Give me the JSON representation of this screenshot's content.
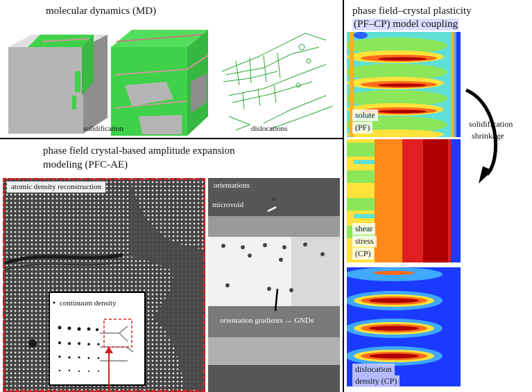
{
  "md": {
    "title": "molecular dynamics (MD)",
    "caption_solidification": "solidification",
    "caption_dislocations": "dislocations"
  },
  "pfcae": {
    "title_line1": "phase field crystal-based amplitude expansion",
    "title_line2": "modeling (PFC-AE)",
    "atomic_label": "atomic density reconstruction",
    "continuum_label": "continuum density",
    "orientations_label": "orientations",
    "microvoid_label": "microvoid",
    "gradients_label": "orientation gradients → GNDs"
  },
  "pfcp": {
    "title_line1": "phase field–crystal plasticity",
    "title_line2": "(PF–CP) model coupling",
    "solute_line1": "solute",
    "solute_line2": "(PF)",
    "shear_line1": "shear",
    "shear_line2": "stress",
    "shear_line3": "(CP)",
    "disloc_line1": "dislocation",
    "disloc_line2": "density (CP)",
    "arrow_line1": "solidification",
    "arrow_line2": "shrinkage"
  },
  "colors": {
    "md_green": "#3fd14a",
    "md_gray": "#b8b8b8",
    "frame_red": "#d42020",
    "map_blue": "#1a3bff",
    "map_red": "#c40000"
  }
}
